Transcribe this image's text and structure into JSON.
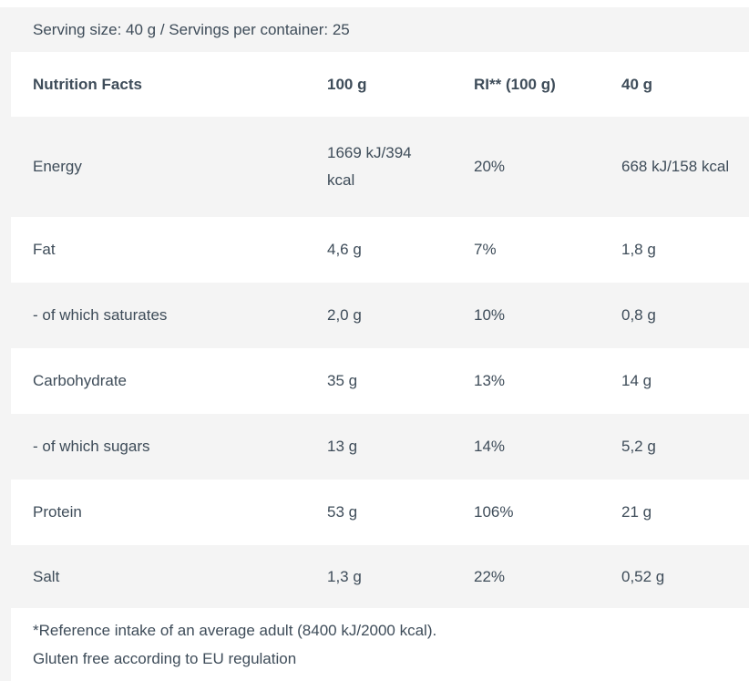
{
  "serving_info": "Serving size: 40 g / Servings per container: 25",
  "table": {
    "header": {
      "label": "Nutrition Facts",
      "col_100g": "100 g",
      "col_ri": "RI** (100 g)",
      "col_40g": "40 g"
    },
    "rows": [
      {
        "label": "Energy",
        "per_100g": "1669 kJ/394 kcal",
        "ri": "20%",
        "per_40g": "668 kJ/158 kcal"
      },
      {
        "label": "Fat",
        "per_100g": "4,6 g",
        "ri": "7%",
        "per_40g": "1,8 g"
      },
      {
        "label": "- of which saturates",
        "per_100g": "2,0 g",
        "ri": "10%",
        "per_40g": "0,8 g"
      },
      {
        "label": "Carbohydrate",
        "per_100g": "35 g",
        "ri": "13%",
        "per_40g": "14 g"
      },
      {
        "label": "- of which sugars",
        "per_100g": "13 g",
        "ri": "14%",
        "per_40g": "5,2 g"
      },
      {
        "label": "Protein",
        "per_100g": "53 g",
        "ri": "106%",
        "per_40g": "21 g"
      },
      {
        "label": "Salt",
        "per_100g": "1,3 g",
        "ri": "22%",
        "per_40g": "0,52 g"
      }
    ]
  },
  "footer": {
    "reference_note": "*Reference intake of an average adult (8400 kJ/2000 kcal).",
    "gluten_note": "Gluten free according to EU regulation"
  },
  "colors": {
    "text": "#3e4c59",
    "row_alt_bg": "#f4f4f4",
    "row_bg": "#ffffff"
  }
}
